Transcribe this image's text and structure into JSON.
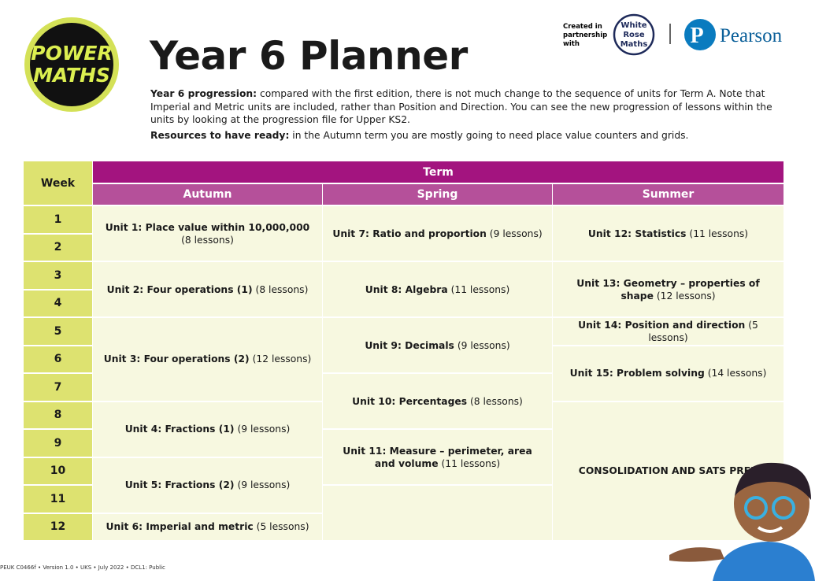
{
  "header": {
    "logo": [
      "POWER",
      "MATHS"
    ],
    "partner_note": [
      "Created in",
      "partnership",
      "with"
    ],
    "partner_logo": [
      "White",
      "Rose",
      "Maths"
    ],
    "publisher": "Pearson",
    "title": "Year 6 Planner"
  },
  "intro": [
    {
      "label": "Year 6 progression:",
      "text": " compared with the first edition, there is not much change to the sequence of units for Term A. Note that Imperial and Metric units are included, rather than Position and Direction. You can see the new progression of lessons within the units by looking at the progression file for Upper KS2."
    },
    {
      "label": "Resources to have ready:",
      "text": " in the Autumn term you are mostly going to need place value counters and grids."
    }
  ],
  "table": {
    "week_header": "Week",
    "term_header": "Term",
    "seasons": [
      "Autumn",
      "Spring",
      "Summer"
    ],
    "weeks": [
      "1",
      "2",
      "3",
      "4",
      "5",
      "6",
      "7",
      "8",
      "9",
      "10",
      "11",
      "12"
    ],
    "autumn": [
      {
        "title": "Unit 1: Place value within 10,000,000",
        "lessons": "(8 lessons)"
      },
      {
        "title": "Unit 2: Four operations (1)",
        "lessons": "(8 lessons)"
      },
      {
        "title": "Unit 3: Four operations (2)",
        "lessons": "(12 lessons)"
      },
      {
        "title": "Unit 4: Fractions (1)",
        "lessons": "(9 lessons)"
      },
      {
        "title": "Unit 5: Fractions (2)",
        "lessons": "(9 lessons)"
      },
      {
        "title": "Unit 6: Imperial and metric",
        "lessons": "(5 lessons)"
      }
    ],
    "spring": [
      {
        "title": "Unit 7: Ratio and proportion",
        "lessons": "(9 lessons)"
      },
      {
        "title": "Unit 8: Algebra",
        "lessons": "(11 lessons)"
      },
      {
        "title": "Unit 9: Decimals",
        "lessons": "(9 lessons)"
      },
      {
        "title": "Unit 10: Percentages",
        "lessons": "(8 lessons)"
      },
      {
        "title": "Unit 11: Measure – perimeter, area and volume",
        "lessons": "(11 lessons)"
      }
    ],
    "summer": [
      {
        "title": "Unit 12: Statistics",
        "lessons": "(11 lessons)"
      },
      {
        "title": "Unit 13: Geometry – properties of shape",
        "lessons": "(12 lessons)"
      },
      {
        "title": "Unit 14: Position and direction",
        "lessons": "(5 lessons)"
      },
      {
        "title": "Unit 15: Problem solving",
        "lessons": "(14 lessons)"
      },
      {
        "title": "CONSOLIDATION AND SATS PREP"
      }
    ]
  },
  "footer": "PEUK C0466f • Version 1.0 • UKS • July 2022 • DCL1: Public"
}
